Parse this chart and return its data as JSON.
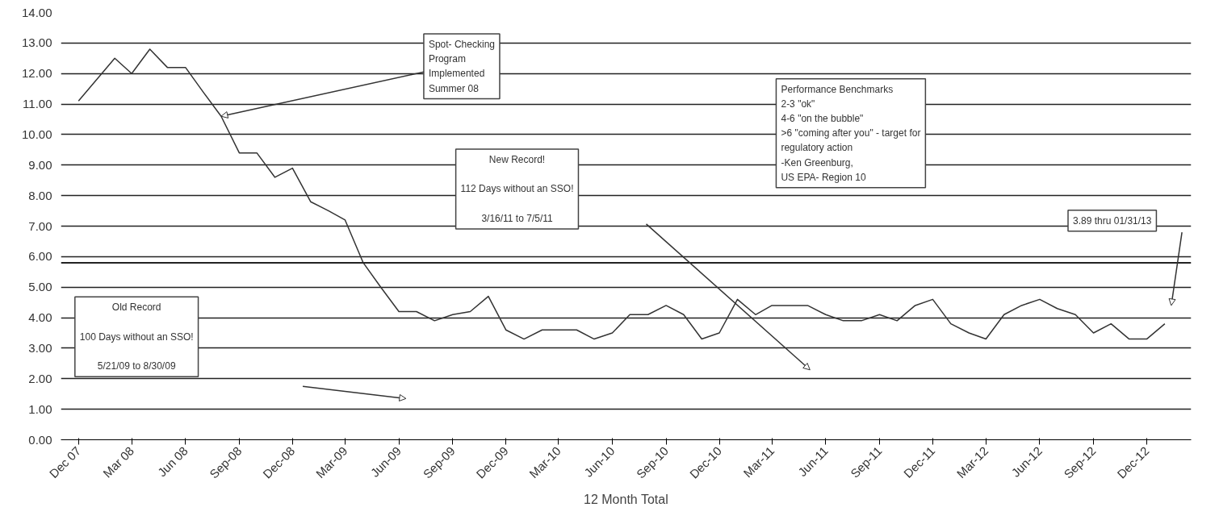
{
  "chart_data": {
    "type": "line",
    "xlabel": "12 Month Total",
    "x": [
      "2007-12",
      "2008-01",
      "2008-02",
      "2008-03",
      "2008-04",
      "2008-05",
      "2008-06",
      "2008-07",
      "2008-08",
      "2008-09",
      "2008-10",
      "2008-11",
      "2008-12",
      "2009-01",
      "2009-02",
      "2009-03",
      "2009-04",
      "2009-05",
      "2009-06",
      "2009-07",
      "2009-08",
      "2009-09",
      "2009-10",
      "2009-11",
      "2009-12",
      "2010-01",
      "2010-02",
      "2010-03",
      "2010-04",
      "2010-05",
      "2010-06",
      "2010-07",
      "2010-08",
      "2010-09",
      "2010-10",
      "2010-11",
      "2010-12",
      "2011-01",
      "2011-02",
      "2011-03",
      "2011-04",
      "2011-05",
      "2011-06",
      "2011-07",
      "2011-08",
      "2011-09",
      "2011-10",
      "2011-11",
      "2011-12",
      "2012-01",
      "2012-02",
      "2012-03",
      "2012-04",
      "2012-05",
      "2012-06",
      "2012-07",
      "2012-08",
      "2012-09",
      "2012-10",
      "2012-11",
      "2012-12",
      "2013-01"
    ],
    "series": [
      {
        "color": "#333333",
        "values": [
          11.1,
          11.8,
          12.5,
          12.0,
          12.8,
          12.2,
          12.2,
          11.4,
          10.6,
          9.4,
          9.4,
          8.6,
          8.9,
          7.8,
          7.5,
          7.2,
          5.8,
          5.0,
          4.2,
          4.2,
          3.9,
          4.1,
          4.2,
          4.7,
          3.6,
          3.3,
          3.6,
          3.6,
          3.6,
          3.3,
          3.5,
          4.1,
          4.1,
          4.4,
          4.1,
          3.3,
          3.5,
          4.6,
          4.1,
          4.4,
          4.4,
          4.4,
          4.1,
          3.9,
          3.9,
          4.1,
          3.9,
          4.4,
          4.6,
          3.8,
          3.5,
          3.3,
          4.1,
          4.4,
          4.6,
          4.3,
          4.1,
          3.5,
          3.8,
          3.3,
          3.3,
          3.8
        ]
      }
    ],
    "xlim": [
      "2007-11-01",
      "2013-02-15"
    ],
    "ylim": [
      0,
      14
    ],
    "yticks": [
      {
        "value": 0,
        "label": "0.00"
      },
      {
        "value": 1,
        "label": "1.00"
      },
      {
        "value": 2,
        "label": "2.00"
      },
      {
        "value": 3,
        "label": "3.00"
      },
      {
        "value": 4,
        "label": "4.00"
      },
      {
        "value": 5,
        "label": "5.00"
      },
      {
        "value": 6,
        "label": "6.00"
      },
      {
        "value": 7,
        "label": "7.00"
      },
      {
        "value": 8,
        "label": "8.00"
      },
      {
        "value": 9,
        "label": "9.00"
      },
      {
        "value": 10,
        "label": "10.00"
      },
      {
        "value": 11,
        "label": "11.00"
      },
      {
        "value": 12,
        "label": "12.00"
      },
      {
        "value": 13,
        "label": "13.00"
      },
      {
        "value": 14,
        "label": "14.00"
      }
    ],
    "xticks": [
      {
        "value": "2007-12",
        "label": "Dec 07"
      },
      {
        "value": "2008-03",
        "label": "Mar 08"
      },
      {
        "value": "2008-06",
        "label": "Jun 08"
      },
      {
        "value": "2008-09",
        "label": "Sep-08"
      },
      {
        "value": "2008-12",
        "label": "Dec-08"
      },
      {
        "value": "2009-03",
        "label": "Mar-09"
      },
      {
        "value": "2009-06",
        "label": "Jun-09"
      },
      {
        "value": "2009-09",
        "label": "Sep-09"
      },
      {
        "value": "2009-12",
        "label": "Dec-09"
      },
      {
        "value": "2010-03",
        "label": "Mar-10"
      },
      {
        "value": "2010-06",
        "label": "Jun-10"
      },
      {
        "value": "2010-09",
        "label": "Sep-10"
      },
      {
        "value": "2010-12",
        "label": "Dec-10"
      },
      {
        "value": "2011-03",
        "label": "Mar-11"
      },
      {
        "value": "2011-06",
        "label": "Jun-11"
      },
      {
        "value": "2011-09",
        "label": "Sep-11"
      },
      {
        "value": "2011-12",
        "label": "Dec-11"
      },
      {
        "value": "2012-03",
        "label": "Mar-12"
      },
      {
        "value": "2012-06",
        "label": "Jun-12"
      },
      {
        "value": "2012-09",
        "label": "Sep-12"
      },
      {
        "value": "2012-12",
        "label": "Dec-12"
      }
    ],
    "grid": "y",
    "ref_lines": [
      {
        "axis": "y",
        "value": 5.8,
        "color": "#222222"
      }
    ],
    "annotations": [
      {
        "text": "Spot- Checking\nProgram\nImplemented\nSummer 08",
        "x": "2008-08",
        "y": 10.6
      },
      "Old Record\n\n100 Days without an SSO!\n\n5/21/09 to 8/30/09",
      "New Record!\n\n112 Days without an SSO!\n\n3/16/11 to 7/5/11",
      "Performance Benchmarks\n2-3 \"ok\"\n4-6 \"on the bubble\"\n>6 \"coming after you\" - target for\n    regulatory action\n  -Ken Greenburg,\n  US EPA- Region 10",
      "3.89 thru 01/31/13"
    ]
  }
}
